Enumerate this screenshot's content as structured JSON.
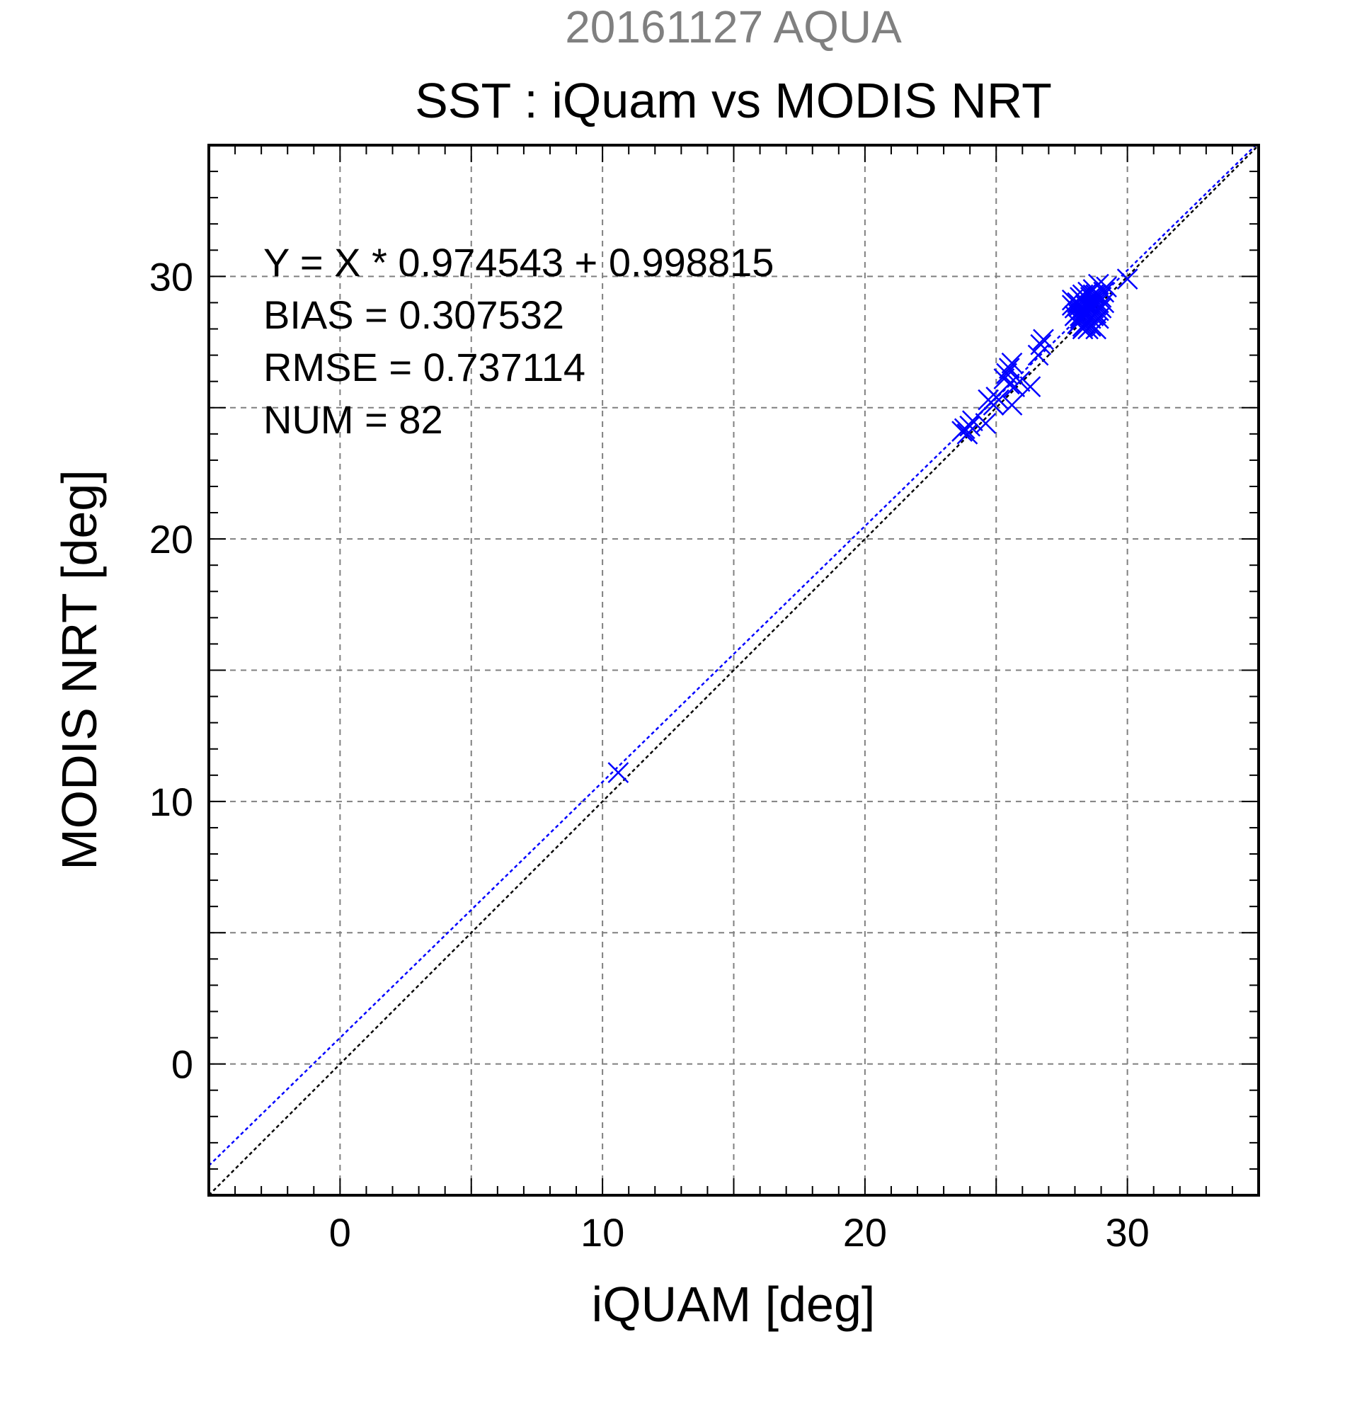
{
  "chart_data": {
    "type": "scatter",
    "suptitle": "20161127 AQUA",
    "title": "SST : iQuam vs MODIS NRT",
    "xlabel": "iQUAM [deg]",
    "ylabel": "MODIS NRT [deg]",
    "xlim": [
      -5,
      35
    ],
    "ylim": [
      -5,
      35
    ],
    "xticks": [
      0,
      10,
      20,
      30
    ],
    "yticks": [
      0,
      10,
      20,
      30
    ],
    "xtick_labels": [
      "0",
      "10",
      "20",
      "30"
    ],
    "ytick_labels": [
      "0",
      "10",
      "20",
      "30"
    ],
    "grid": true,
    "stats": {
      "equation": "Y = X * 0.974543 + 0.998815",
      "bias": "BIAS = 0.307532",
      "rmse": "RMSE = 0.737114",
      "num": "NUM = 82"
    },
    "fit": {
      "slope": 0.974543,
      "intercept": 0.998815
    },
    "series": [
      {
        "marker": "x",
        "color": "#0000ff",
        "points": [
          [
            10.6,
            11.1
          ],
          [
            23.7,
            24.1
          ],
          [
            23.8,
            24.2
          ],
          [
            23.9,
            24.0
          ],
          [
            24.0,
            24.3
          ],
          [
            24.1,
            24.5
          ],
          [
            24.6,
            24.4
          ],
          [
            24.7,
            25.3
          ],
          [
            24.8,
            25.2
          ],
          [
            24.9,
            25.1
          ],
          [
            25.0,
            25.4
          ],
          [
            25.1,
            25.3
          ],
          [
            25.3,
            26.1
          ],
          [
            25.4,
            26.3
          ],
          [
            25.5,
            26.5
          ],
          [
            25.6,
            26.7
          ],
          [
            25.5,
            25.9
          ],
          [
            25.6,
            25.1
          ],
          [
            25.7,
            25.8
          ],
          [
            25.9,
            26.0
          ],
          [
            26.3,
            25.8
          ],
          [
            26.6,
            27.0
          ],
          [
            26.7,
            27.4
          ],
          [
            26.8,
            27.6
          ],
          [
            27.9,
            28.9
          ],
          [
            27.9,
            29.1
          ],
          [
            28.0,
            28.5
          ],
          [
            28.0,
            28.8
          ],
          [
            28.1,
            28.6
          ],
          [
            28.1,
            29.0
          ],
          [
            28.2,
            28.3
          ],
          [
            28.2,
            28.5
          ],
          [
            28.2,
            28.7
          ],
          [
            28.2,
            28.9
          ],
          [
            28.3,
            28.1
          ],
          [
            28.3,
            28.4
          ],
          [
            28.3,
            28.6
          ],
          [
            28.3,
            28.8
          ],
          [
            28.3,
            29.1
          ],
          [
            28.3,
            29.3
          ],
          [
            28.4,
            28.2
          ],
          [
            28.4,
            28.5
          ],
          [
            28.4,
            28.7
          ],
          [
            28.4,
            29.0
          ],
          [
            28.4,
            29.2
          ],
          [
            28.5,
            28.0
          ],
          [
            28.5,
            28.3
          ],
          [
            28.5,
            28.6
          ],
          [
            28.5,
            28.9
          ],
          [
            28.5,
            29.4
          ],
          [
            28.6,
            28.4
          ],
          [
            28.6,
            28.7
          ],
          [
            28.6,
            29.0
          ],
          [
            28.6,
            29.2
          ],
          [
            28.7,
            28.5
          ],
          [
            28.7,
            28.8
          ],
          [
            28.7,
            29.1
          ],
          [
            28.7,
            29.5
          ],
          [
            28.8,
            28.0
          ],
          [
            28.8,
            28.6
          ],
          [
            28.8,
            28.9
          ],
          [
            28.8,
            29.3
          ],
          [
            28.9,
            28.7
          ],
          [
            28.9,
            29.0
          ],
          [
            28.9,
            29.7
          ],
          [
            29.0,
            28.8
          ],
          [
            29.0,
            29.2
          ],
          [
            29.1,
            29.4
          ],
          [
            29.2,
            29.6
          ],
          [
            28.1,
            28.2
          ],
          [
            28.3,
            28.0
          ],
          [
            28.6,
            28.1
          ],
          [
            28.2,
            29.2
          ],
          [
            28.4,
            28.9
          ],
          [
            28.7,
            29.3
          ],
          [
            28.5,
            28.8
          ],
          [
            28.9,
            28.4
          ],
          [
            29.1,
            29.0
          ],
          [
            28.2,
            28.4
          ],
          [
            28.6,
            28.9
          ],
          [
            30.0,
            29.9
          ],
          [
            28.4,
            28.6
          ]
        ]
      }
    ],
    "colors": {
      "points": "#0000ff",
      "fit_line": "#0000ff",
      "identity_line": "#000000",
      "grid": "#808080",
      "suptitle": "#808080"
    }
  }
}
